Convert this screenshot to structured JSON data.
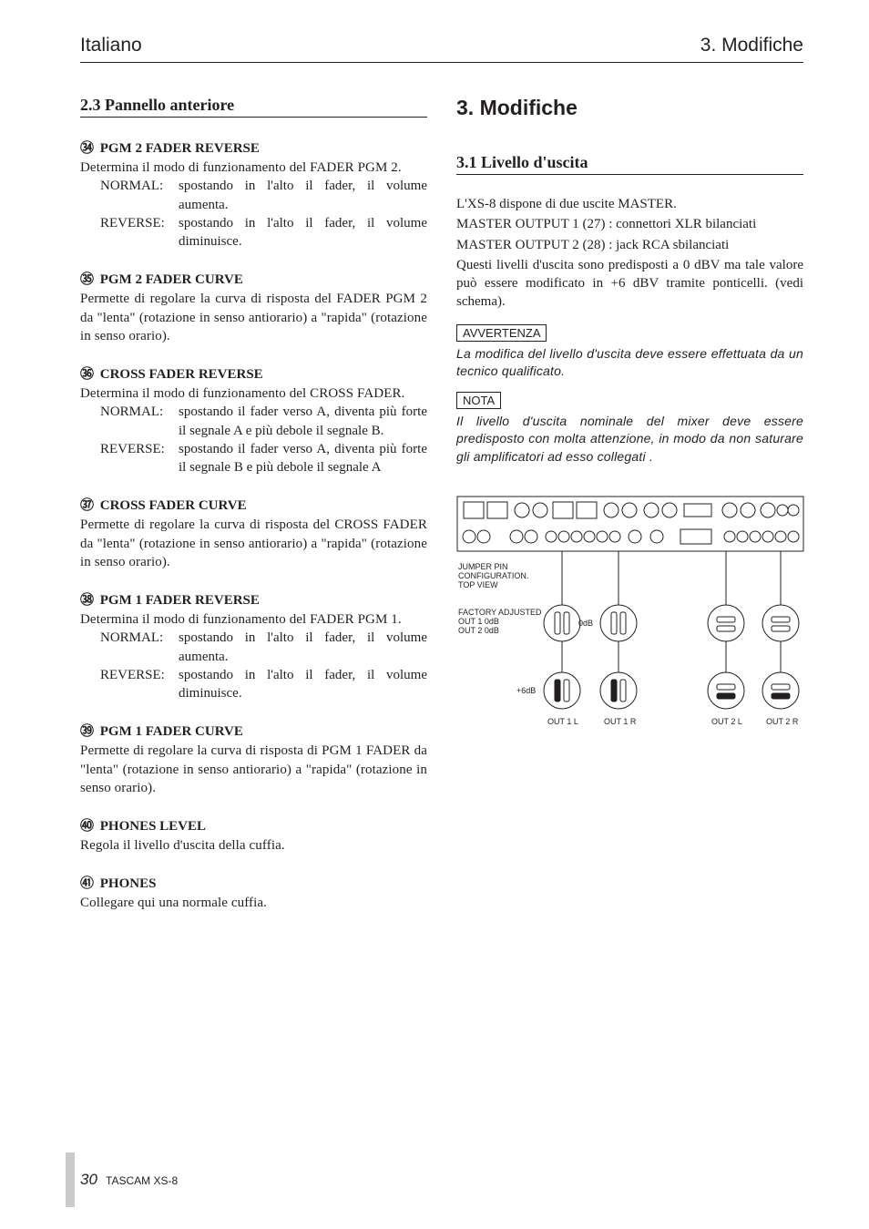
{
  "header": {
    "left": "Italiano",
    "right": "3. Modifiche"
  },
  "left": {
    "section_title": "2.3  Pannello anteriore",
    "items": [
      {
        "num": "㉞",
        "title": "PGM 2 FADER REVERSE",
        "body": "Determina il modo di funzionamento del FADER PGM 2.",
        "defs": [
          {
            "term": "NORMAL:",
            "desc": "spostando in l'alto il fader, il volume aumenta."
          },
          {
            "term": "REVERSE:",
            "desc": "spostando in l'alto il fader, il volume diminuisce."
          }
        ]
      },
      {
        "num": "㉟",
        "title": "PGM 2 FADER CURVE",
        "body": "Permette di regolare la curva di risposta del FADER PGM 2 da \"lenta\" (rotazione in senso antiorario) a \"rapida\" (rotazione in senso orario)."
      },
      {
        "num": "㊱",
        "title": "CROSS FADER REVERSE",
        "body": "Determina il modo di funzionamento del CROSS FADER.",
        "defs": [
          {
            "term": "NORMAL:",
            "desc": "spostando il fader verso A, diventa più forte il segnale A e più debole il segnale B."
          },
          {
            "term": "REVERSE:",
            "desc": "spostando il fader verso A, diventa più forte il segnale B e più debole il segnale A"
          }
        ]
      },
      {
        "num": "㊲",
        "title": "CROSS FADER CURVE",
        "body": "Permette di regolare la curva di risposta del CROSS FADER da \"lenta\" (rotazione in senso antiorario) a \"rapida\" (rotazione in senso orario)."
      },
      {
        "num": "㊳",
        "title": "PGM 1 FADER REVERSE",
        "body": "Determina il modo di funzionamento del FADER PGM 1.",
        "defs": [
          {
            "term": "NORMAL:",
            "desc": "spostando in l'alto il fader, il volume aumenta."
          },
          {
            "term": "REVERSE:",
            "desc": "spostando in l'alto il fader, il volume diminuisce."
          }
        ]
      },
      {
        "num": "㊴",
        "title": "PGM 1 FADER CURVE",
        "body": "Permette di regolare la curva di risposta di PGM 1 FADER da \"lenta\" (rotazione in senso antiorario) a \"rapida\" (rotazione in senso orario)."
      },
      {
        "num": "㊵",
        "title": "PHONES LEVEL",
        "body": "Regola il livello d'uscita della cuffia."
      },
      {
        "num": "㊶",
        "title": "PHONES",
        "body": "Collegare qui una normale cuffia."
      }
    ]
  },
  "right": {
    "big_title": "3. Modifiche",
    "section_title": "3.1 Livello d'uscita",
    "paras": [
      "L'XS-8 dispone di due uscite MASTER.",
      "MASTER OUTPUT 1 (27) : connettori XLR bilanciati",
      "MASTER OUTPUT 2 (28) : jack RCA sbilanciati",
      "Questi livelli d'uscita sono predisposti a 0 dBV ma tale valore può essere modificato in +6 dBV tramite ponticelli. (vedi schema)."
    ],
    "warn_label": "AVVERTENZA",
    "warn_text": "La modifica del livello d'uscita deve essere effettuata da un tecnico qualificato.",
    "note_label": "NOTA",
    "note_text": "Il livello d'uscita nominale del mixer deve essere predisposto con molta attenzione, in modo da non saturare gli amplificatori ad esso collegati .",
    "diagram": {
      "jumper_lines": [
        "JUMPER PIN",
        "CONFIGURATION.",
        "TOP VIEW"
      ],
      "factory_lines": [
        "FACTORY ADJUSTED",
        "OUT 1        0dB",
        "OUT 2        0dB"
      ],
      "zero_label": "0dB",
      "six_label": "+6dB",
      "out_labels": [
        "OUT 1 L",
        "OUT 1 R",
        "OUT 2 L",
        "OUT 2 R"
      ],
      "colors": {
        "stroke": "#231f20",
        "bg": "#ffffff"
      }
    }
  },
  "footer": {
    "page": "30",
    "model": "TASCAM  XS-8"
  }
}
